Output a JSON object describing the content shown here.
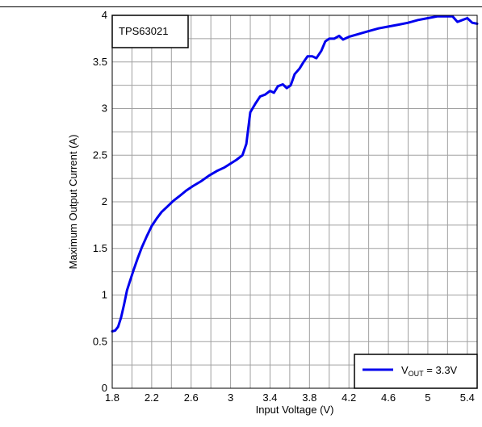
{
  "chart_data": {
    "type": "line",
    "title": "",
    "xlabel": "Input Voltage (V)",
    "ylabel": "Maximum Output Current (A)",
    "xlim": [
      1.8,
      5.5
    ],
    "ylim": [
      0,
      4
    ],
    "x_ticks": [
      "1.8",
      "2.2",
      "2.6",
      "3",
      "3.4",
      "3.8",
      "4.2",
      "4.6",
      "5",
      "5.4"
    ],
    "y_ticks": [
      "0",
      "0.5",
      "1",
      "1.5",
      "2",
      "2.5",
      "3",
      "3.5",
      "4"
    ],
    "grid": true,
    "annotation": "TPS63021",
    "legend": {
      "position": "bottom-right",
      "label_main": "V",
      "label_sub": "OUT",
      "label_rest": " = 3.3V"
    },
    "series": [
      {
        "name": "VOUT = 3.3V",
        "color": "#0000ee",
        "points": [
          [
            1.8,
            0.61
          ],
          [
            1.83,
            0.62
          ],
          [
            1.86,
            0.66
          ],
          [
            1.89,
            0.76
          ],
          [
            1.92,
            0.9
          ],
          [
            1.95,
            1.05
          ],
          [
            1.98,
            1.15
          ],
          [
            2.02,
            1.28
          ],
          [
            2.06,
            1.4
          ],
          [
            2.1,
            1.51
          ],
          [
            2.15,
            1.63
          ],
          [
            2.2,
            1.74
          ],
          [
            2.25,
            1.82
          ],
          [
            2.3,
            1.89
          ],
          [
            2.36,
            1.95
          ],
          [
            2.42,
            2.01
          ],
          [
            2.48,
            2.06
          ],
          [
            2.55,
            2.12
          ],
          [
            2.62,
            2.17
          ],
          [
            2.7,
            2.22
          ],
          [
            2.78,
            2.28
          ],
          [
            2.86,
            2.33
          ],
          [
            2.94,
            2.37
          ],
          [
            3.0,
            2.41
          ],
          [
            3.06,
            2.45
          ],
          [
            3.12,
            2.5
          ],
          [
            3.16,
            2.62
          ],
          [
            3.2,
            2.96
          ],
          [
            3.25,
            3.05
          ],
          [
            3.3,
            3.13
          ],
          [
            3.35,
            3.15
          ],
          [
            3.4,
            3.19
          ],
          [
            3.44,
            3.17
          ],
          [
            3.48,
            3.24
          ],
          [
            3.53,
            3.26
          ],
          [
            3.57,
            3.22
          ],
          [
            3.61,
            3.25
          ],
          [
            3.65,
            3.37
          ],
          [
            3.7,
            3.43
          ],
          [
            3.74,
            3.5
          ],
          [
            3.78,
            3.56
          ],
          [
            3.83,
            3.56
          ],
          [
            3.87,
            3.54
          ],
          [
            3.92,
            3.62
          ],
          [
            3.96,
            3.72
          ],
          [
            4.0,
            3.75
          ],
          [
            4.05,
            3.75
          ],
          [
            4.1,
            3.78
          ],
          [
            4.14,
            3.74
          ],
          [
            4.2,
            3.77
          ],
          [
            4.3,
            3.8
          ],
          [
            4.4,
            3.83
          ],
          [
            4.5,
            3.86
          ],
          [
            4.6,
            3.88
          ],
          [
            4.7,
            3.9
          ],
          [
            4.8,
            3.92
          ],
          [
            4.9,
            3.95
          ],
          [
            5.0,
            3.97
          ],
          [
            5.1,
            3.99
          ],
          [
            5.2,
            3.99
          ],
          [
            5.25,
            3.99
          ],
          [
            5.3,
            3.93
          ],
          [
            5.35,
            3.95
          ],
          [
            5.4,
            3.97
          ],
          [
            5.45,
            3.92
          ],
          [
            5.5,
            3.91
          ]
        ]
      }
    ]
  }
}
